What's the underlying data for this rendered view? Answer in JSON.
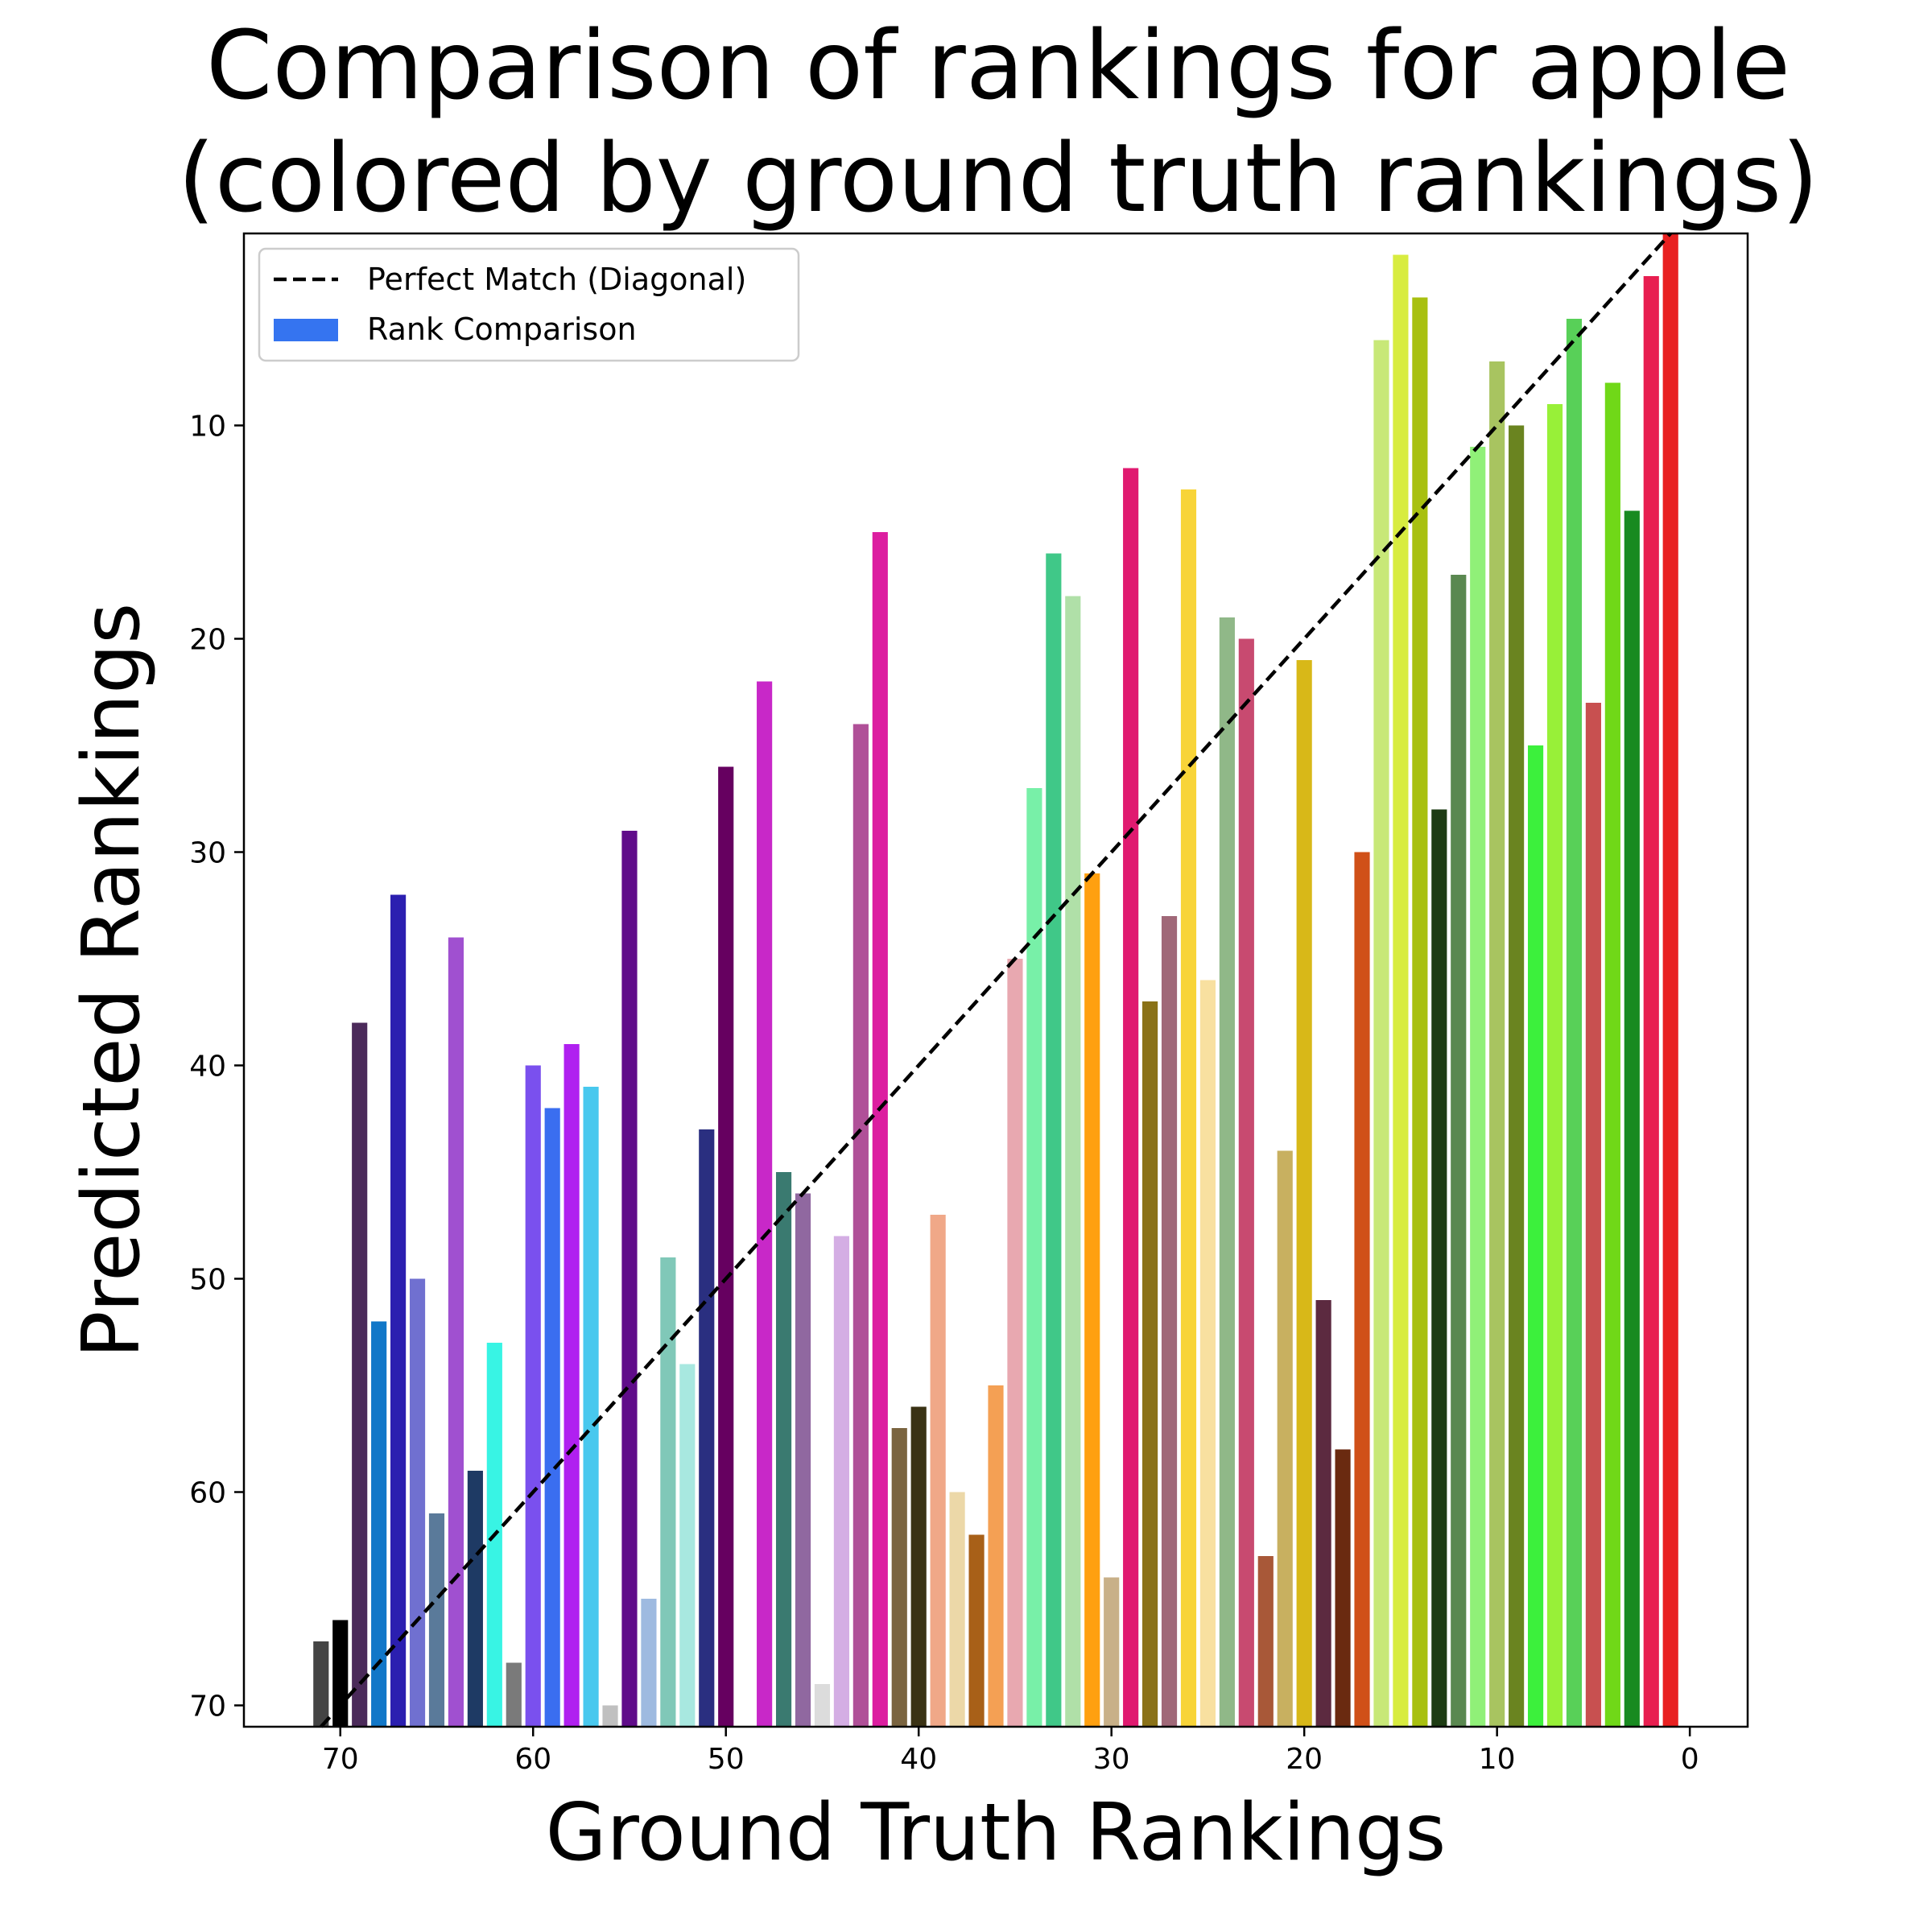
{
  "chart_data": {
    "type": "bar",
    "title_lines": [
      "Comparison of rankings for apple",
      "(colored by ground truth rankings)"
    ],
    "xlabel": "Ground Truth Rankings",
    "ylabel": "Predicted Rankings",
    "xlim": [
      75,
      -3
    ],
    "ylim": [
      71,
      1
    ],
    "x_ticks": [
      70,
      60,
      50,
      40,
      30,
      20,
      10,
      0
    ],
    "y_ticks": [
      10,
      20,
      30,
      40,
      50,
      60,
      70
    ],
    "bar_base": 71,
    "legend": {
      "placement": "upper-left",
      "entries": [
        {
          "label": "Perfect Match (Diagonal)",
          "kind": "dashed-line",
          "color": "#000000"
        },
        {
          "label": "Rank Comparison",
          "kind": "patch",
          "color": "#3574f0"
        }
      ]
    },
    "diagonal": {
      "from": [
        71,
        71
      ],
      "to": [
        1,
        1
      ],
      "style": "dashed",
      "color": "#000000"
    },
    "bars": [
      {
        "x": 71,
        "y": 67,
        "color": "#444444"
      },
      {
        "x": 70,
        "y": 66,
        "color": "#000000"
      },
      {
        "x": 69,
        "y": 38,
        "color": "#4b2a5a"
      },
      {
        "x": 68,
        "y": 52,
        "color": "#1177c8"
      },
      {
        "x": 67,
        "y": 32,
        "color": "#2b1fb0"
      },
      {
        "x": 66,
        "y": 50,
        "color": "#7070d0"
      },
      {
        "x": 65,
        "y": 61,
        "color": "#5a7a9a"
      },
      {
        "x": 64,
        "y": 34,
        "color": "#a050d0"
      },
      {
        "x": 63,
        "y": 59,
        "color": "#1e3a64"
      },
      {
        "x": 62,
        "y": 53,
        "color": "#38f4e4"
      },
      {
        "x": 61,
        "y": 68,
        "color": "#7a7a7a"
      },
      {
        "x": 60,
        "y": 40,
        "color": "#7a50ee"
      },
      {
        "x": 59,
        "y": 42,
        "color": "#3a6ef0"
      },
      {
        "x": 58,
        "y": 39,
        "color": "#b020f0"
      },
      {
        "x": 57,
        "y": 41,
        "color": "#48c8ee"
      },
      {
        "x": 56,
        "y": 70,
        "color": "#c0c0c0"
      },
      {
        "x": 55,
        "y": 29,
        "color": "#600c8a"
      },
      {
        "x": 54,
        "y": 65,
        "color": "#9ebae0"
      },
      {
        "x": 53,
        "y": 49,
        "color": "#80c8b8"
      },
      {
        "x": 52,
        "y": 54,
        "color": "#a8e8e0"
      },
      {
        "x": 51,
        "y": 43,
        "color": "#2a2f80"
      },
      {
        "x": 50,
        "y": 26,
        "color": "#660060"
      },
      {
        "x": 48,
        "y": 22,
        "color": "#c828c8"
      },
      {
        "x": 47,
        "y": 45,
        "color": "#3a7a70"
      },
      {
        "x": 46,
        "y": 46,
        "color": "#9068a0"
      },
      {
        "x": 45,
        "y": 69,
        "color": "#dcdcdc"
      },
      {
        "x": 44,
        "y": 48,
        "color": "#d4aee4"
      },
      {
        "x": 43,
        "y": 24,
        "color": "#b05098"
      },
      {
        "x": 42,
        "y": 15,
        "color": "#dc1ea0"
      },
      {
        "x": 41,
        "y": 57,
        "color": "#7a6440"
      },
      {
        "x": 40,
        "y": 56,
        "color": "#3a3214"
      },
      {
        "x": 39,
        "y": 47,
        "color": "#f0a888"
      },
      {
        "x": 38,
        "y": 60,
        "color": "#ecd8a8"
      },
      {
        "x": 37,
        "y": 62,
        "color": "#a86018"
      },
      {
        "x": 36,
        "y": 55,
        "color": "#f4a054"
      },
      {
        "x": 35,
        "y": 35,
        "color": "#e8a8b0"
      },
      {
        "x": 34,
        "y": 27,
        "color": "#78f0a8"
      },
      {
        "x": 33,
        "y": 16,
        "color": "#40c888"
      },
      {
        "x": 32,
        "y": 18,
        "color": "#b0e0a8"
      },
      {
        "x": 31,
        "y": 31,
        "color": "#ffa010"
      },
      {
        "x": 30,
        "y": 64,
        "color": "#c8b088"
      },
      {
        "x": 29,
        "y": 12,
        "color": "#e01a70"
      },
      {
        "x": 28,
        "y": 37,
        "color": "#8a7218"
      },
      {
        "x": 27,
        "y": 33,
        "color": "#a06878"
      },
      {
        "x": 26,
        "y": 13,
        "color": "#f8d438"
      },
      {
        "x": 25,
        "y": 36,
        "color": "#f8e0a0"
      },
      {
        "x": 24,
        "y": 19,
        "color": "#90b888"
      },
      {
        "x": 23,
        "y": 20,
        "color": "#c84a70"
      },
      {
        "x": 22,
        "y": 63,
        "color": "#a85838"
      },
      {
        "x": 21,
        "y": 44,
        "color": "#c8b060"
      },
      {
        "x": 20,
        "y": 21,
        "color": "#d8b818"
      },
      {
        "x": 19,
        "y": 51,
        "color": "#5c2a40"
      },
      {
        "x": 18,
        "y": 58,
        "color": "#6a2a10"
      },
      {
        "x": 17,
        "y": 30,
        "color": "#d05018"
      },
      {
        "x": 16,
        "y": 6,
        "color": "#c8e878"
      },
      {
        "x": 15,
        "y": 2,
        "color": "#d8ec40"
      },
      {
        "x": 14,
        "y": 4,
        "color": "#a8c010"
      },
      {
        "x": 13,
        "y": 28,
        "color": "#1e3c14"
      },
      {
        "x": 12,
        "y": 17,
        "color": "#5a8850"
      },
      {
        "x": 11,
        "y": 11,
        "color": "#90f078"
      },
      {
        "x": 10,
        "y": 7,
        "color": "#a8c460"
      },
      {
        "x": 9,
        "y": 10,
        "color": "#6a8420"
      },
      {
        "x": 8,
        "y": 25,
        "color": "#3cf03c"
      },
      {
        "x": 7,
        "y": 9,
        "color": "#98f038"
      },
      {
        "x": 6,
        "y": 5,
        "color": "#58d058"
      },
      {
        "x": 5,
        "y": 23,
        "color": "#c85050"
      },
      {
        "x": 4,
        "y": 8,
        "color": "#70d818"
      },
      {
        "x": 3,
        "y": 14,
        "color": "#188a20"
      },
      {
        "x": 2,
        "y": 3,
        "color": "#e81e50"
      },
      {
        "x": 1,
        "y": 1,
        "color": "#e82020"
      }
    ]
  }
}
